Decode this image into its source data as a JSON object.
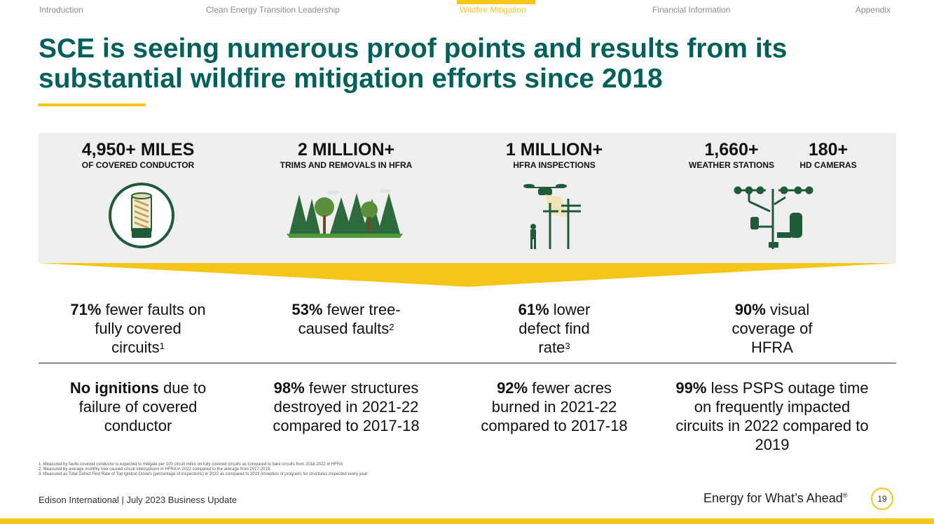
{
  "nav": {
    "items": [
      "Introduction",
      "Clean Energy Transition Leadership",
      "Wildfire Mitigation",
      "Financial Information",
      "Appendix"
    ],
    "active": "Wildfire Mitigation"
  },
  "title": "SCE is seeing numerous proof points and results from its substantial wildfire mitigation efforts since 2018",
  "stats": {
    "covered": {
      "big": "4,950+ MILES",
      "small": "OF COVERED CONDUCTOR"
    },
    "trims": {
      "big": "2 MILLION+",
      "small": "TRIMS AND REMOVALS IN HFRA"
    },
    "inspections": {
      "big": "1 MILLION+",
      "small": "HFRA INSPECTIONS"
    },
    "weather": {
      "big": "1,660+",
      "small": "WEATHER STATIONS"
    },
    "cameras": {
      "big": "180+",
      "small": "HD CAMERAS"
    }
  },
  "results_row1": [
    {
      "bold": "71%",
      "pre": " fewer faults on fully covered circuits",
      "sup": "1"
    },
    {
      "bold": "53%",
      "pre": " fewer tree-caused faults",
      "sup": "2"
    },
    {
      "bold": "61%",
      "pre": " lower defect find rate",
      "sup": "3"
    },
    {
      "bold": "90%",
      "pre": " visual coverage of HFRA",
      "sup": ""
    }
  ],
  "results_row2": [
    {
      "bold": "No ignitions",
      "rest": " due to failure of covered conductor"
    },
    {
      "bold": "98%",
      "rest": " fewer structures destroyed in 2021-22 compared to 2017-18"
    },
    {
      "bold": "92%",
      "rest": " fewer acres burned in 2021-22 compared to 2017-18"
    },
    {
      "bold": "99%",
      "rest": " less PSPS outage time on frequently impacted circuits in 2022 compared to 2019"
    }
  ],
  "footnotes": [
    "1.  Measured by faults covered conductor is expected to mitigate per 100 circuit miles on fully covered circuits as compared to bare circuits from 2018-2022 in HFRA",
    "2.  Measured by average monthly tree caused circuit interruptions in HFRA in 2022 compared to the average from 2017-2019.",
    "3.  Measured as Total Defect Find Rate of Top Ignition Drivers (percentage of inspections) in 2022 as compared to 2019 (inception of program) for structures inspected every year"
  ],
  "footer": {
    "left": "Edison International |  July 2023 Business Update",
    "tagline": "Energy for What’s Ahead",
    "tagline_mark": "®",
    "page": "19"
  },
  "colors": {
    "green": "#00615a",
    "yellow": "#f5c518",
    "dark_green": "#1f5a3a"
  }
}
